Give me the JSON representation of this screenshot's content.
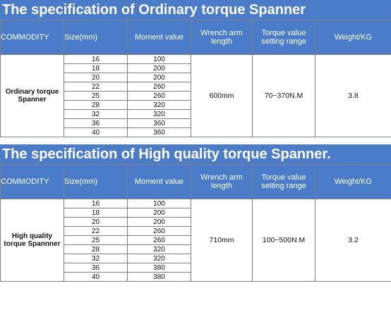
{
  "tables": [
    {
      "title": "The specification of Ordinary torque Spanner",
      "headers": {
        "commodity": "COMMODITY",
        "size": "Size(mm)",
        "moment": "Moment value",
        "arm": "Wrench arm length",
        "range": "Torque value setting range",
        "weight": "Weight/KG"
      },
      "commodity": "Ordinary torque Spanner",
      "rows": [
        {
          "size": "16",
          "moment": "100"
        },
        {
          "size": "18",
          "moment": "200"
        },
        {
          "size": "20",
          "moment": "200"
        },
        {
          "size": "22",
          "moment": "260"
        },
        {
          "size": "25",
          "moment": "260"
        },
        {
          "size": "28",
          "moment": "320"
        },
        {
          "size": "32",
          "moment": "320"
        },
        {
          "size": "36",
          "moment": "360"
        },
        {
          "size": "40",
          "moment": "360"
        }
      ],
      "arm_length": "600mm",
      "torque_range": "70~370N.M",
      "weight": "3.8"
    },
    {
      "title": "The specification of High quality  torque Spanner.",
      "headers": {
        "commodity": "COMMODITY",
        "size": "Size(mm)",
        "moment": "Moment value",
        "arm": "Wrench arm length",
        "range": "Torque value setting range",
        "weight": "Weight/KG"
      },
      "commodity": "High quality torque Spannner",
      "rows": [
        {
          "size": "16",
          "moment": "100"
        },
        {
          "size": "18",
          "moment": "200"
        },
        {
          "size": "20",
          "moment": "200"
        },
        {
          "size": "22",
          "moment": "260"
        },
        {
          "size": "25",
          "moment": "260"
        },
        {
          "size": "28",
          "moment": "320"
        },
        {
          "size": "32",
          "moment": "320"
        },
        {
          "size": "36",
          "moment": "380"
        },
        {
          "size": "40",
          "moment": "380"
        }
      ],
      "arm_length": "710mm",
      "torque_range": "100~500N.M",
      "weight": "3.2"
    }
  ]
}
